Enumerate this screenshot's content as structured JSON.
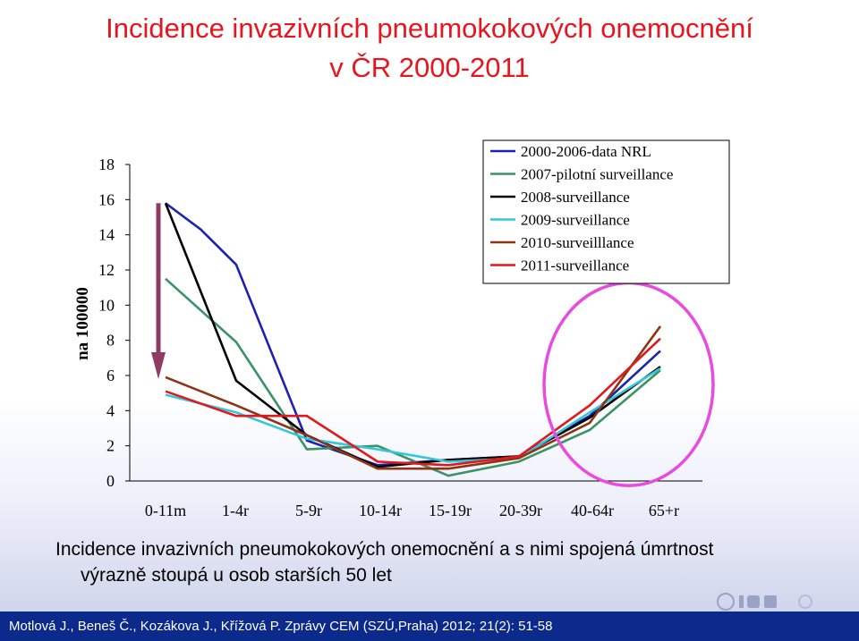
{
  "slide": {
    "title_line1": "Incidence invazivních pneumokokových onemocnění",
    "title_line2": "v ČR 2000-2011",
    "caption_line1": "Incidence invazivních pneumokokových onemocnění a s nimi spojená úmrtnost",
    "caption_line2": "výrazně stoupá u osob starších 50 let",
    "footer": "Motlová J., Beneš Č., Kozákova J., Křížová P. Zprávy CEM (SZÚ,Praha) 2012; 21(2): 51-58"
  },
  "chart_data": {
    "type": "line",
    "title": "",
    "xlabel": "",
    "ylabel": "na 100000",
    "ylim": [
      0,
      18
    ],
    "yticks": [
      "0",
      "2",
      "4",
      "6",
      "8",
      "10",
      "12",
      "14",
      "16",
      "18"
    ],
    "categories": [
      "0-11m",
      "1-4r",
      "5-9r",
      "10-14r",
      "15-19r",
      "20-39r",
      "40-64r",
      "65+r"
    ],
    "legend_position": "top-right",
    "series": [
      {
        "name": "2000-2006-data NRL",
        "color": "#1c23b0",
        "x": [
          0,
          0.5,
          1,
          2,
          3,
          4,
          5,
          6,
          7
        ],
        "values": [
          15.8,
          14.3,
          12.3,
          2.3,
          0.9,
          1.2,
          1.4,
          3.7,
          7.4
        ]
      },
      {
        "name": "2007-pilotní surveillance",
        "color": "#3b9265",
        "x": [
          0,
          1,
          2,
          3,
          4,
          5,
          6,
          7
        ],
        "values": [
          11.5,
          7.9,
          1.8,
          2.0,
          0.3,
          1.1,
          2.9,
          6.3
        ]
      },
      {
        "name": "2008-surveillance",
        "color": "#000000",
        "x": [
          0,
          1,
          2,
          3,
          4,
          5,
          6,
          7
        ],
        "values": [
          15.8,
          5.7,
          2.6,
          0.8,
          1.2,
          1.4,
          3.6,
          6.5
        ]
      },
      {
        "name": "2009-surveillance",
        "color": "#33c6dc",
        "x": [
          0,
          1,
          2,
          3,
          4,
          5,
          6,
          7
        ],
        "values": [
          4.9,
          3.9,
          2.4,
          1.8,
          1.1,
          1.3,
          3.9,
          6.4
        ]
      },
      {
        "name": "2010-surveilllance",
        "color": "#8e3414",
        "x": [
          0,
          1,
          2,
          3,
          4,
          5,
          6,
          7
        ],
        "values": [
          5.9,
          4.3,
          2.6,
          0.7,
          0.7,
          1.3,
          3.3,
          8.8
        ]
      },
      {
        "name": "2011-surveillance",
        "color": "#e0191e",
        "x": [
          0,
          1,
          2,
          3,
          4,
          5,
          6,
          7
        ],
        "values": [
          5.1,
          3.7,
          3.7,
          1.1,
          0.9,
          1.4,
          4.3,
          8.1
        ]
      }
    ],
    "annotations": [
      {
        "kind": "arrow",
        "color": "#8e3b65",
        "category": "0-11m",
        "from": 15.8,
        "to": 5.9
      },
      {
        "kind": "ellipse",
        "color": "#e84be0",
        "categories": [
          "40-64r",
          "65+r"
        ]
      }
    ]
  }
}
